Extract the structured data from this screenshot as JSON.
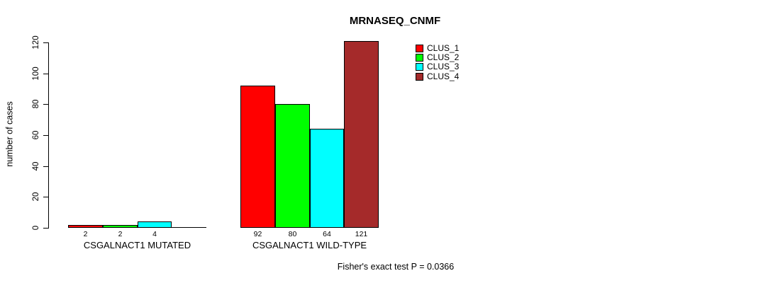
{
  "chart_data": {
    "type": "bar",
    "title": "MRNASEQ_CNMF",
    "ylabel": "number of cases",
    "xlabel": "",
    "ylim": [
      0,
      120
    ],
    "yticks": [
      0,
      20,
      40,
      60,
      80,
      100,
      120
    ],
    "grid": false,
    "legend_position": "top-right",
    "series": [
      {
        "name": "CLUS_1",
        "color": "#ff0000"
      },
      {
        "name": "CLUS_2",
        "color": "#00ff00"
      },
      {
        "name": "CLUS_3",
        "color": "#00ffff"
      },
      {
        "name": "CLUS_4",
        "color": "#a52a2a"
      }
    ],
    "groups": [
      {
        "label": "CSGALNACT1 MUTATED",
        "values": [
          2,
          2,
          4,
          0
        ],
        "value_labels": [
          "2",
          "2",
          "4",
          ""
        ]
      },
      {
        "label": "CSGALNACT1 WILD-TYPE",
        "values": [
          92,
          80,
          64,
          121
        ],
        "value_labels": [
          "92",
          "80",
          "64",
          "121"
        ]
      }
    ],
    "annotation": "Fisher's exact test P = 0.0366"
  }
}
